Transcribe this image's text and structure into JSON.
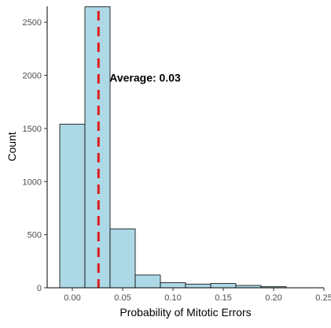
{
  "chart_data": {
    "type": "bar",
    "title": "",
    "xlabel": "Probability of Mitotic Errors",
    "ylabel": "Count",
    "xlim": [
      -0.025,
      0.25
    ],
    "ylim": [
      0,
      2650
    ],
    "bin_width": 0.025,
    "bins": [
      {
        "center": 0.0,
        "count": 1540
      },
      {
        "center": 0.025,
        "count": 2645
      },
      {
        "center": 0.05,
        "count": 555
      },
      {
        "center": 0.075,
        "count": 120
      },
      {
        "center": 0.1,
        "count": 48
      },
      {
        "center": 0.125,
        "count": 35
      },
      {
        "center": 0.15,
        "count": 40
      },
      {
        "center": 0.175,
        "count": 22
      },
      {
        "center": 0.2,
        "count": 10
      }
    ],
    "x_ticks": [
      {
        "value": 0.0,
        "label": "0.00"
      },
      {
        "value": 0.05,
        "label": "0.05"
      },
      {
        "value": 0.1,
        "label": "0.10"
      },
      {
        "value": 0.15,
        "label": "0.15"
      },
      {
        "value": 0.2,
        "label": "0.20"
      },
      {
        "value": 0.25,
        "label": "0.25"
      }
    ],
    "y_ticks": [
      {
        "value": 0,
        "label": "0"
      },
      {
        "value": 500,
        "label": "500"
      },
      {
        "value": 1000,
        "label": "1000"
      },
      {
        "value": 1500,
        "label": "1500"
      },
      {
        "value": 2000,
        "label": "2000"
      },
      {
        "value": 2500,
        "label": "2500"
      }
    ],
    "mean_line": {
      "value": 0.026,
      "label": "Average:  0.03",
      "label_y": 1980,
      "color": "#dd1c1c"
    },
    "bar_fill": "#add8e6",
    "bar_stroke": "#000000",
    "grid": false,
    "legend": "none"
  }
}
